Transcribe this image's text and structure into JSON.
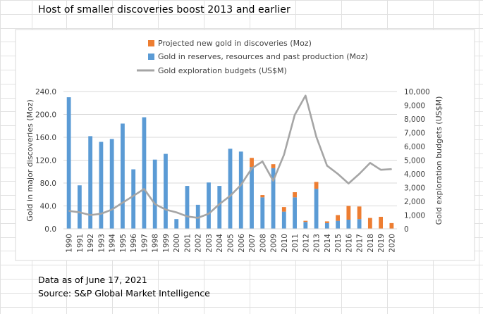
{
  "colors": {
    "projected": "#ED7D31",
    "reserves": "#5B9BD5",
    "budgets": "#A5A5A5",
    "gridline": "#D9D9D9",
    "sheet_grid": "#E1E1E1"
  },
  "notes": {
    "date": "Data as of June 17, 2021",
    "source": "Source: S&P Global Market Intelligence"
  },
  "chart_data": {
    "type": "bar",
    "title": "Host of smaller discoveries boost 2013 and earlier",
    "categories": [
      "1990",
      "1991",
      "1992",
      "1993",
      "1994",
      "1995",
      "1996",
      "1997",
      "1998",
      "1999",
      "2000",
      "2001",
      "2002",
      "2003",
      "2004",
      "2005",
      "2006",
      "2007",
      "2008",
      "2009",
      "2010",
      "2011",
      "2012",
      "2013",
      "2014",
      "2015",
      "2016",
      "2017",
      "2018",
      "2019",
      "2020"
    ],
    "series": [
      {
        "name": "Gold in reserves, resources and past production (Moz)",
        "kind": "stacked-bar",
        "axis": "left",
        "values": [
          230,
          76,
          162,
          152,
          157,
          184,
          104,
          195,
          121,
          131,
          17,
          75,
          42,
          81,
          75,
          140,
          135,
          108,
          55,
          106,
          30,
          55,
          12,
          70,
          10,
          14,
          16,
          17,
          0,
          0,
          0
        ]
      },
      {
        "name": "Projected new gold in discoveries (Moz)",
        "kind": "stacked-bar",
        "axis": "left",
        "values": [
          0,
          0,
          0,
          0,
          0,
          0,
          0,
          0,
          0,
          0,
          0,
          0,
          0,
          0,
          0,
          0,
          0,
          16,
          4,
          7,
          8,
          9,
          2,
          12,
          3,
          10,
          24,
          22,
          19,
          21,
          10
        ]
      },
      {
        "name": "Gold exploration budgets (US$M)",
        "kind": "line",
        "axis": "right",
        "values": [
          1300,
          1200,
          1000,
          1100,
          1400,
          1900,
          2400,
          2900,
          1800,
          1400,
          1200,
          900,
          800,
          1100,
          1800,
          2400,
          3200,
          4400,
          4900,
          3500,
          5400,
          8300,
          9700,
          6700,
          4600,
          4000,
          3300,
          4000,
          4800,
          4300,
          4350
        ]
      }
    ],
    "ylabel": "Gold in major discoveries (Moz)",
    "ylim": [
      0,
      240
    ],
    "yticks": [
      "0.0",
      "40.0",
      "80.0",
      "120.0",
      "160.0",
      "200.0",
      "240.0"
    ],
    "y2label": "Gold exploration budgets (US$M)",
    "y2lim": [
      0,
      10000
    ],
    "y2ticks": [
      "0",
      "1,000",
      "2,000",
      "3,000",
      "4,000",
      "5,000",
      "6,000",
      "7,000",
      "8,000",
      "9,000",
      "10,000"
    ],
    "legend": "top-center",
    "grid": true
  }
}
